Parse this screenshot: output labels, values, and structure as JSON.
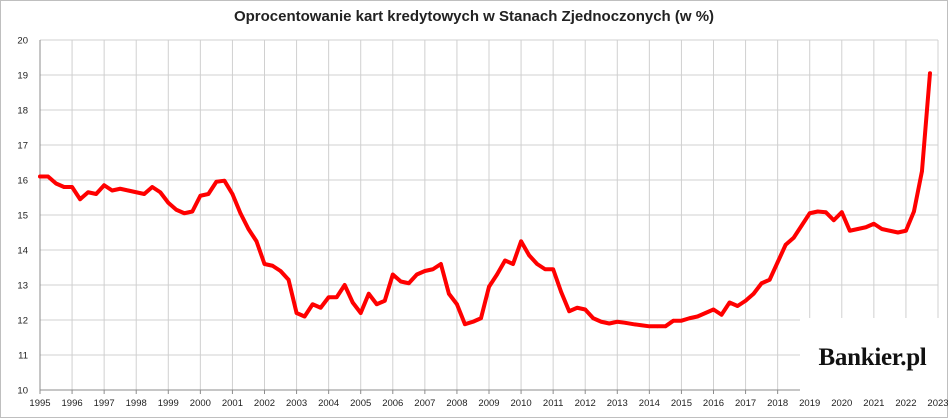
{
  "chart_data": {
    "type": "line",
    "title": "Oprocentowanie kart kredytowych w Stanach Zjednoczonych (w %)",
    "xlabel": "",
    "ylabel": "",
    "xlim": [
      1995,
      2023
    ],
    "ylim": [
      10,
      20
    ],
    "y_ticks": [
      10,
      11,
      12,
      13,
      14,
      15,
      16,
      17,
      18,
      19,
      20
    ],
    "x_ticks": [
      1995,
      1996,
      1997,
      1998,
      1999,
      2000,
      2001,
      2002,
      2003,
      2004,
      2005,
      2006,
      2007,
      2008,
      2009,
      2010,
      2011,
      2012,
      2013,
      2014,
      2015,
      2016,
      2017,
      2018,
      2019,
      2020,
      2021,
      2022,
      2023
    ],
    "grid": true,
    "legend": "none",
    "series": [
      {
        "color": "#ff0000",
        "x": [
          1995.0,
          1995.25,
          1995.5,
          1995.75,
          1996.0,
          1996.25,
          1996.5,
          1996.75,
          1997.0,
          1997.25,
          1997.5,
          1997.75,
          1998.0,
          1998.25,
          1998.5,
          1998.75,
          1999.0,
          1999.25,
          1999.5,
          1999.75,
          2000.0,
          2000.25,
          2000.5,
          2000.75,
          2001.0,
          2001.25,
          2001.5,
          2001.75,
          2002.0,
          2002.25,
          2002.5,
          2002.75,
          2003.0,
          2003.25,
          2003.5,
          2003.75,
          2004.0,
          2004.25,
          2004.5,
          2004.75,
          2005.0,
          2005.25,
          2005.5,
          2005.75,
          2006.0,
          2006.25,
          2006.5,
          2006.75,
          2007.0,
          2007.25,
          2007.5,
          2007.75,
          2008.0,
          2008.25,
          2008.5,
          2008.75,
          2009.0,
          2009.25,
          2009.5,
          2009.75,
          2010.0,
          2010.25,
          2010.5,
          2010.75,
          2011.0,
          2011.25,
          2011.5,
          2011.75,
          2012.0,
          2012.25,
          2012.5,
          2012.75,
          2013.0,
          2013.25,
          2013.5,
          2013.75,
          2014.0,
          2014.25,
          2014.5,
          2014.75,
          2015.0,
          2015.25,
          2015.5,
          2015.75,
          2016.0,
          2016.25,
          2016.5,
          2016.75,
          2017.0,
          2017.25,
          2017.5,
          2017.75,
          2018.0,
          2018.25,
          2018.5,
          2018.75,
          2019.0,
          2019.25,
          2019.5,
          2019.75,
          2020.0,
          2020.25,
          2020.5,
          2020.75,
          2021.0,
          2021.25,
          2021.5,
          2021.75,
          2022.0,
          2022.25,
          2022.5,
          2022.75
        ],
        "y": [
          16.1,
          16.1,
          15.9,
          15.8,
          15.8,
          15.45,
          15.65,
          15.6,
          15.85,
          15.7,
          15.75,
          15.7,
          15.65,
          15.6,
          15.8,
          15.65,
          15.35,
          15.15,
          15.05,
          15.1,
          15.55,
          15.6,
          15.95,
          15.98,
          15.6,
          15.05,
          14.6,
          14.25,
          13.6,
          13.55,
          13.4,
          13.15,
          12.2,
          12.1,
          12.45,
          12.35,
          12.65,
          12.65,
          13.0,
          12.5,
          12.2,
          12.75,
          12.45,
          12.55,
          13.3,
          13.1,
          13.05,
          13.3,
          13.4,
          13.45,
          13.6,
          12.75,
          12.45,
          11.88,
          11.95,
          12.05,
          12.95,
          13.3,
          13.7,
          13.6,
          14.25,
          13.85,
          13.6,
          13.45,
          13.45,
          12.8,
          12.25,
          12.35,
          12.3,
          12.05,
          11.95,
          11.9,
          11.95,
          11.92,
          11.88,
          11.85,
          11.82,
          11.82,
          11.82,
          11.98,
          11.98,
          12.05,
          12.1,
          12.2,
          12.3,
          12.15,
          12.5,
          12.4,
          12.55,
          12.75,
          13.05,
          13.15,
          13.65,
          14.15,
          14.35,
          14.7,
          15.05,
          15.1,
          15.08,
          14.85,
          15.08,
          14.55,
          14.6,
          14.65,
          14.75,
          14.6,
          14.55,
          14.5,
          14.55,
          15.1,
          16.25,
          19.05
        ]
      }
    ]
  },
  "branding": {
    "logo_text": "Bankier.pl"
  }
}
